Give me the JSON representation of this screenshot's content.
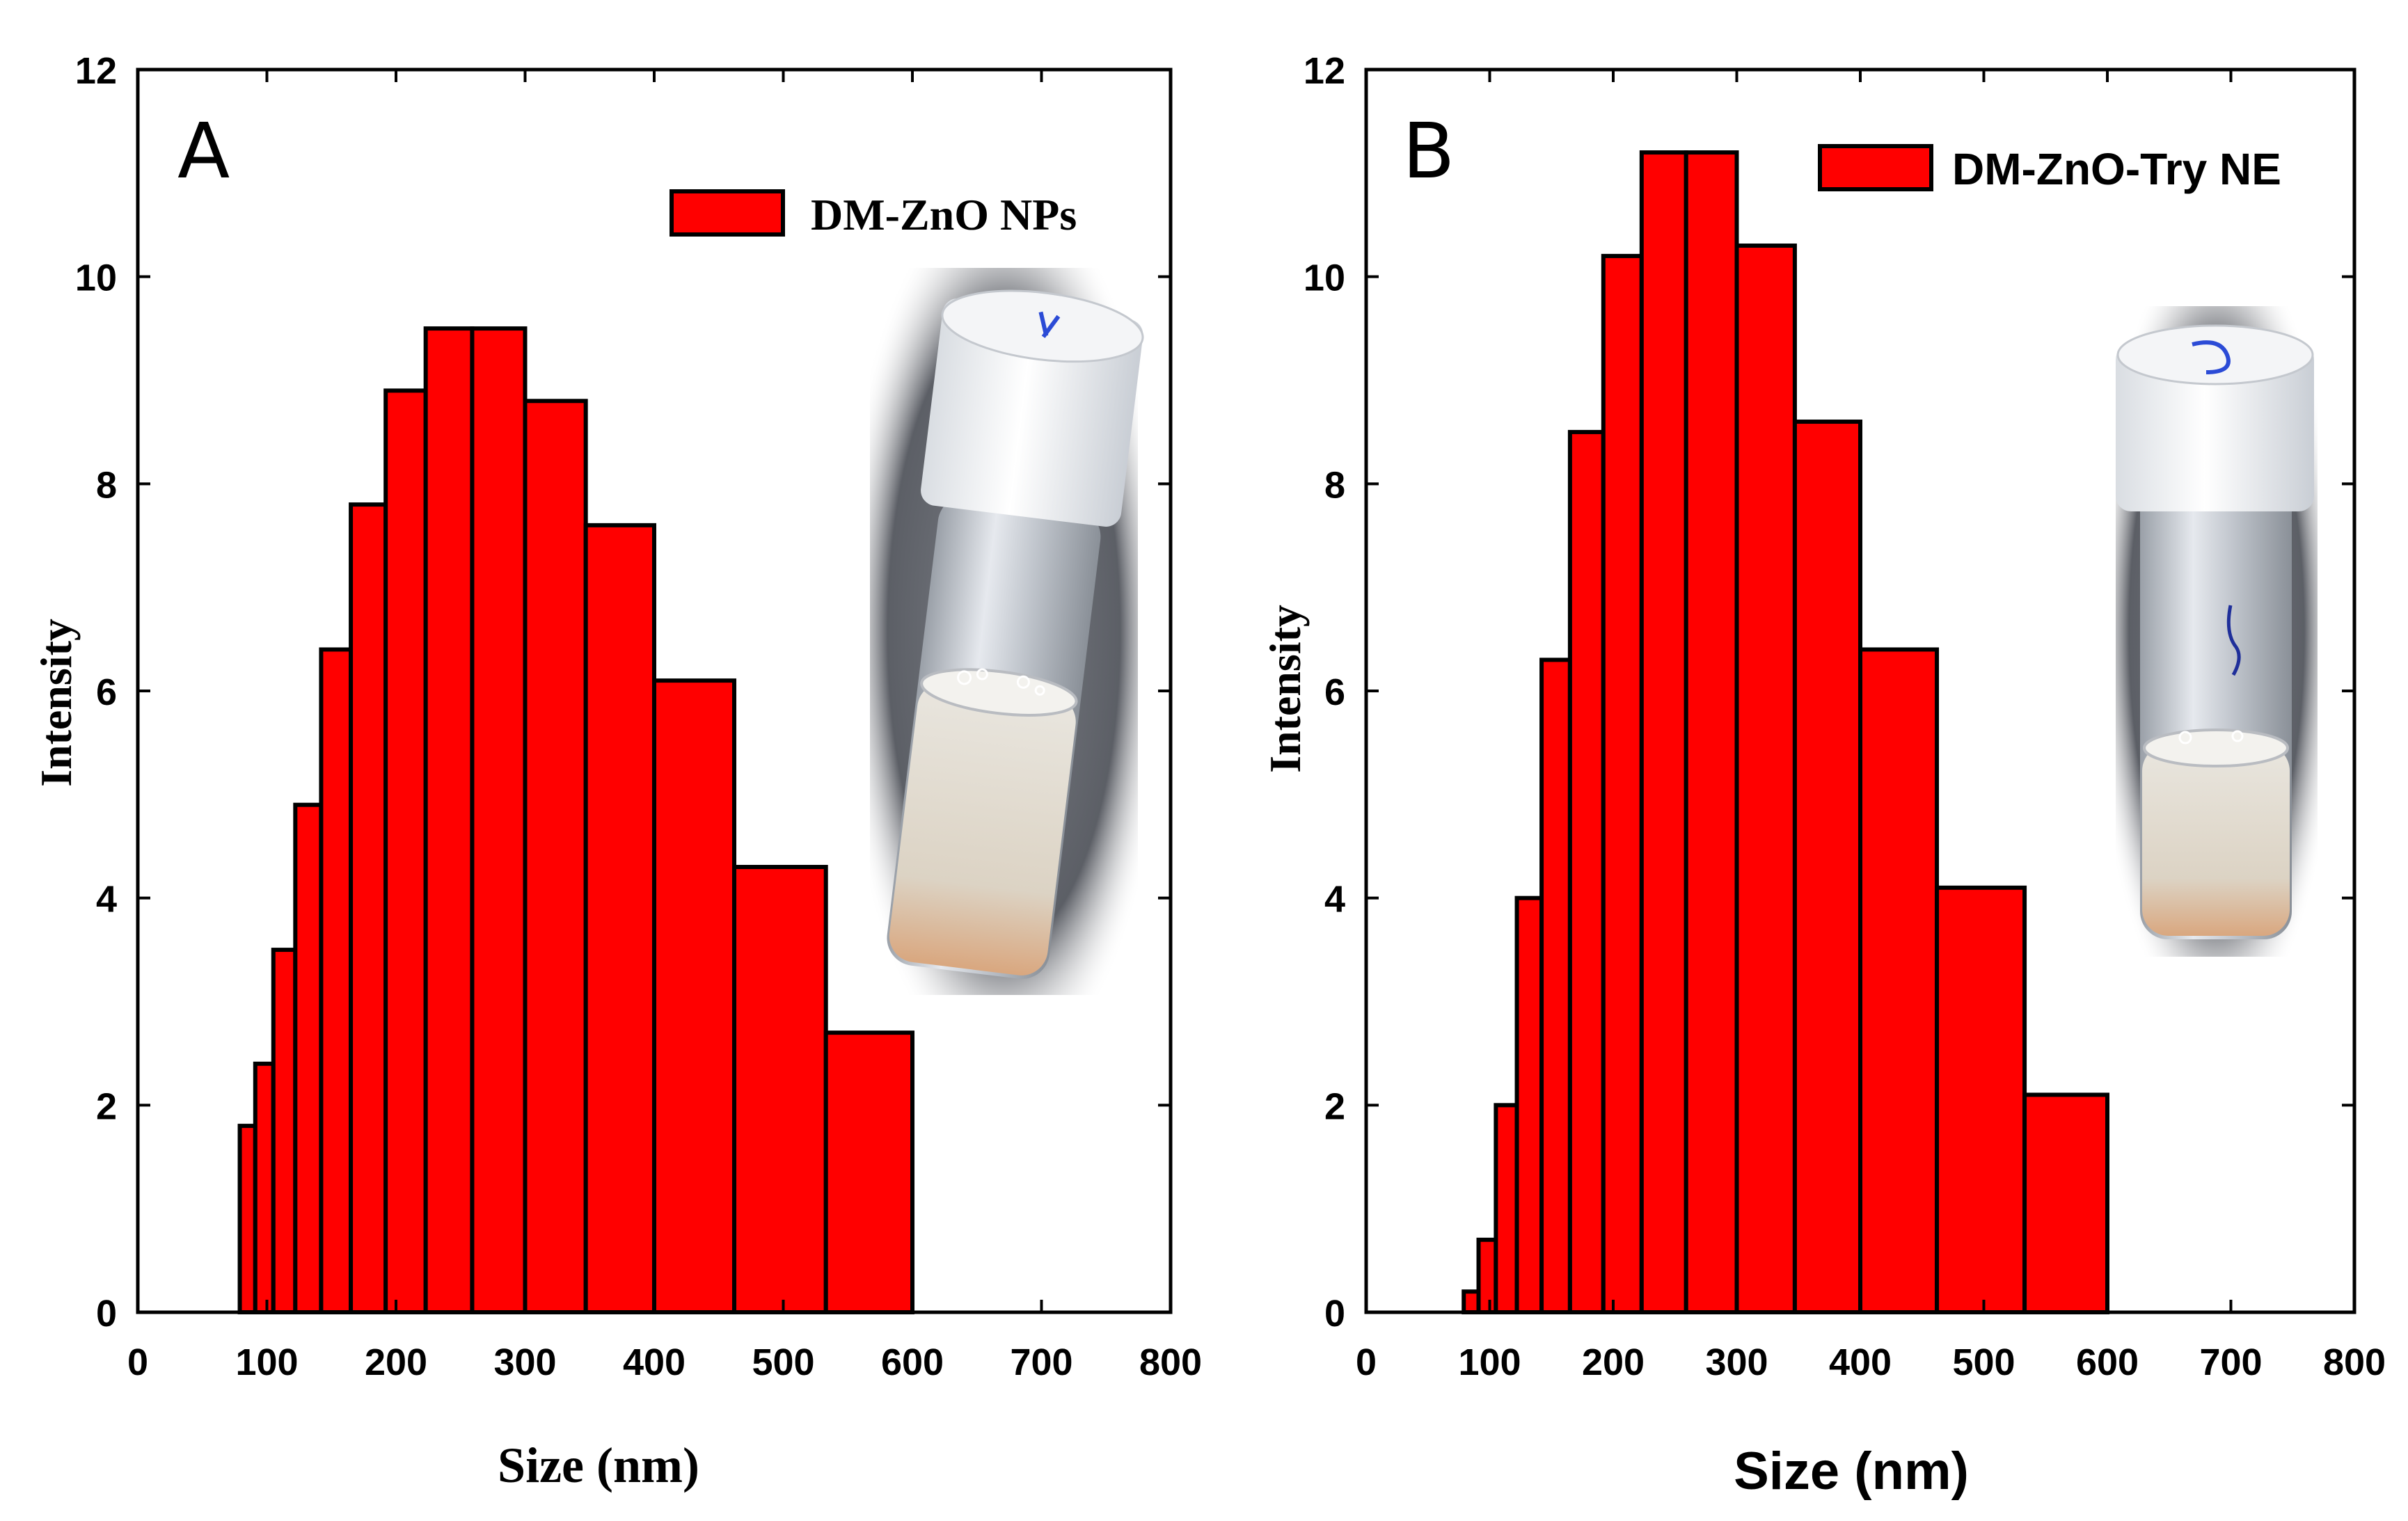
{
  "chart_data": [
    {
      "type": "bar",
      "panel_label": "A",
      "xlabel": "Size (nm)",
      "ylabel": "Intensity",
      "xlim": [
        0,
        800
      ],
      "ylim": [
        0,
        12
      ],
      "xticks": [
        "0",
        "100",
        "200",
        "300",
        "400",
        "500",
        "600",
        "700",
        "800"
      ],
      "yticks": [
        "0",
        "2",
        "4",
        "6",
        "8",
        "10",
        "12"
      ],
      "legend": "DM-ZnO NPs",
      "legend_position": "top-right",
      "inset": "vial-photo-4",
      "bars": [
        {
          "x0": 79,
          "x1": 91,
          "value": 1.8
        },
        {
          "x0": 91,
          "x1": 105,
          "value": 2.4
        },
        {
          "x0": 105,
          "x1": 122,
          "value": 3.5
        },
        {
          "x0": 122,
          "x1": 142,
          "value": 4.9
        },
        {
          "x0": 142,
          "x1": 165,
          "value": 6.4
        },
        {
          "x0": 165,
          "x1": 192,
          "value": 7.8
        },
        {
          "x0": 192,
          "x1": 223,
          "value": 8.9
        },
        {
          "x0": 223,
          "x1": 259,
          "value": 9.5
        },
        {
          "x0": 259,
          "x1": 300,
          "value": 9.5
        },
        {
          "x0": 300,
          "x1": 347,
          "value": 8.8
        },
        {
          "x0": 347,
          "x1": 400,
          "value": 7.6
        },
        {
          "x0": 400,
          "x1": 462,
          "value": 6.1
        },
        {
          "x0": 462,
          "x1": 533,
          "value": 4.3
        },
        {
          "x0": 533,
          "x1": 600,
          "value": 2.7
        }
      ]
    },
    {
      "type": "bar",
      "panel_label": "B",
      "xlabel": "Size (nm)",
      "ylabel": "Intensity",
      "xlim": [
        0,
        800
      ],
      "ylim": [
        0,
        12
      ],
      "xticks": [
        "0",
        "100",
        "200",
        "300",
        "400",
        "500",
        "600",
        "700",
        "800"
      ],
      "yticks": [
        "0",
        "2",
        "4",
        "6",
        "8",
        "10",
        "12"
      ],
      "legend": "DM-ZnO-Try NE",
      "legend_position": "top-right",
      "inset": "vial-photo-5",
      "bars": [
        {
          "x0": 79,
          "x1": 91,
          "value": 0.2
        },
        {
          "x0": 91,
          "x1": 105,
          "value": 0.7
        },
        {
          "x0": 105,
          "x1": 122,
          "value": 2.0
        },
        {
          "x0": 122,
          "x1": 142,
          "value": 4.0
        },
        {
          "x0": 142,
          "x1": 165,
          "value": 6.3
        },
        {
          "x0": 165,
          "x1": 192,
          "value": 8.5
        },
        {
          "x0": 192,
          "x1": 223,
          "value": 10.2
        },
        {
          "x0": 223,
          "x1": 259,
          "value": 11.2
        },
        {
          "x0": 259,
          "x1": 300,
          "value": 11.2
        },
        {
          "x0": 300,
          "x1": 347,
          "value": 10.3
        },
        {
          "x0": 347,
          "x1": 400,
          "value": 8.6
        },
        {
          "x0": 400,
          "x1": 462,
          "value": 6.4
        },
        {
          "x0": 462,
          "x1": 533,
          "value": 4.1
        },
        {
          "x0": 533,
          "x1": 600,
          "value": 2.1
        }
      ]
    }
  ],
  "colors": {
    "bar_fill": "#ff0000",
    "bar_edge": "#000000",
    "axis": "#000000"
  }
}
